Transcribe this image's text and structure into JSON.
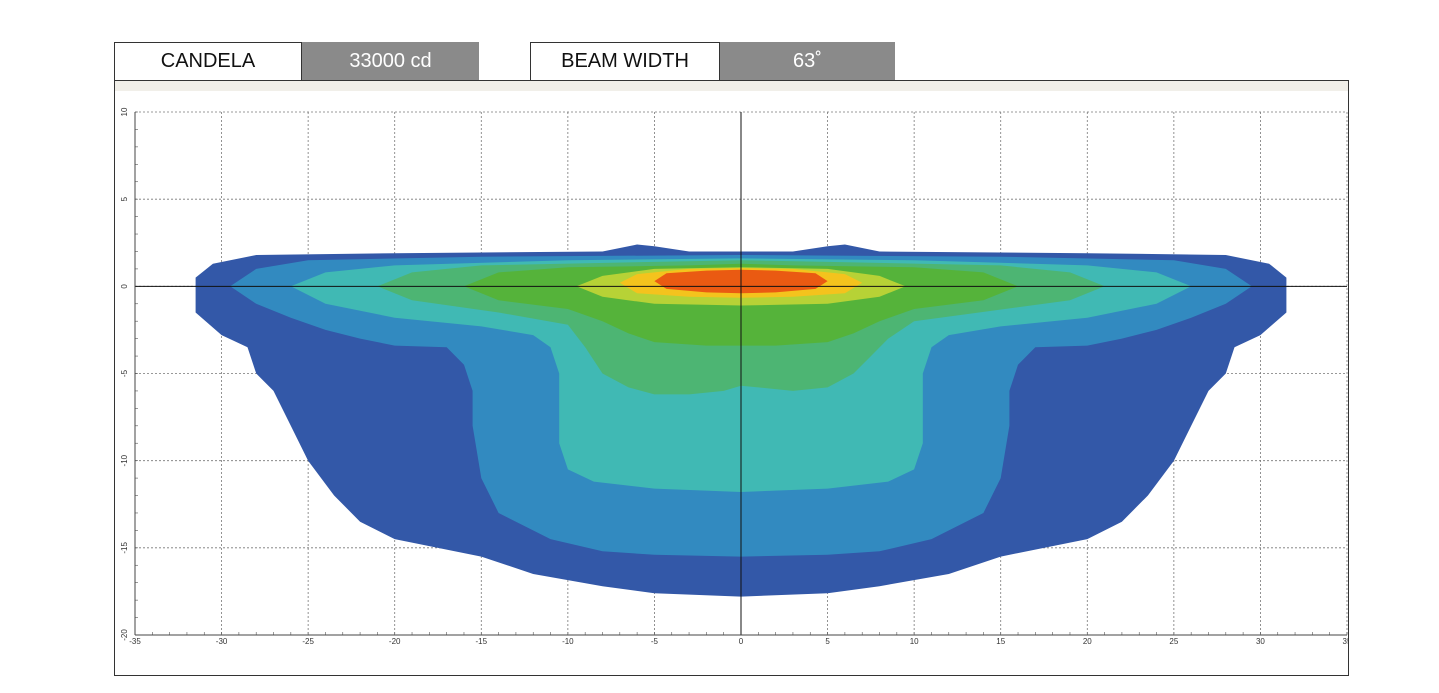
{
  "header": {
    "candela_label": "CANDELA",
    "candela_value": "33000 cd",
    "beam_label": "BEAM WIDTH",
    "beam_value": "63˚"
  },
  "chart_data": {
    "type": "heatmap",
    "title": "",
    "xlabel": "",
    "ylabel": "",
    "xlim": [
      -35,
      35
    ],
    "ylim": [
      -20,
      10
    ],
    "x_ticks": [
      -35,
      -30,
      -25,
      -20,
      -15,
      -10,
      -5,
      0,
      5,
      10,
      15,
      20,
      25,
      30,
      35
    ],
    "y_ticks": [
      10,
      5,
      0,
      -5,
      -10,
      -15,
      -20
    ],
    "grid": true,
    "legend": "none",
    "colors": {
      "level1": "#3358a8",
      "level2": "#328ac0",
      "level3": "#40b9b4",
      "level4": "#4db573",
      "level5": "#55b33a",
      "level6": "#b7d236",
      "level7": "#f4c31d",
      "level8": "#ea5a12"
    },
    "contours": [
      {
        "level": 1,
        "points": [
          [
            -31.5,
            0.5
          ],
          [
            -30.5,
            1.3
          ],
          [
            -28,
            1.8
          ],
          [
            -20,
            1.9
          ],
          [
            -8,
            2
          ],
          [
            -6,
            2.4
          ],
          [
            -5,
            2.3
          ],
          [
            -3,
            2
          ],
          [
            3,
            2
          ],
          [
            5,
            2.3
          ],
          [
            6,
            2.4
          ],
          [
            8,
            2
          ],
          [
            20,
            1.9
          ],
          [
            28,
            1.8
          ],
          [
            30.5,
            1.3
          ],
          [
            31.5,
            0.5
          ],
          [
            31.5,
            -1.5
          ],
          [
            30,
            -2.8
          ],
          [
            28.5,
            -3.5
          ],
          [
            28,
            -5
          ],
          [
            27,
            -6
          ],
          [
            26,
            -8
          ],
          [
            25,
            -10
          ],
          [
            23.5,
            -12
          ],
          [
            22,
            -13.5
          ],
          [
            20,
            -14.5
          ],
          [
            15,
            -15.5
          ],
          [
            12,
            -16.5
          ],
          [
            8,
            -17.2
          ],
          [
            5,
            -17.6
          ],
          [
            0,
            -17.8
          ],
          [
            -5,
            -17.6
          ],
          [
            -8,
            -17.2
          ],
          [
            -12,
            -16.5
          ],
          [
            -15,
            -15.5
          ],
          [
            -20,
            -14.5
          ],
          [
            -22,
            -13.5
          ],
          [
            -23.5,
            -12
          ],
          [
            -25,
            -10
          ],
          [
            -26,
            -8
          ],
          [
            -27,
            -6
          ],
          [
            -28,
            -5
          ],
          [
            -28.5,
            -3.5
          ],
          [
            -30,
            -2.8
          ],
          [
            -31.5,
            -1.5
          ]
        ]
      },
      {
        "level": 2,
        "points": [
          [
            -29.5,
            0
          ],
          [
            -28,
            1
          ],
          [
            -25,
            1.5
          ],
          [
            -15,
            1.7
          ],
          [
            0,
            1.8
          ],
          [
            15,
            1.7
          ],
          [
            25,
            1.5
          ],
          [
            28,
            1
          ],
          [
            29.5,
            0
          ],
          [
            28,
            -1
          ],
          [
            26,
            -1.8
          ],
          [
            24,
            -2.5
          ],
          [
            22,
            -3
          ],
          [
            20,
            -3.4
          ],
          [
            17,
            -3.5
          ],
          [
            16,
            -4.5
          ],
          [
            15.5,
            -6
          ],
          [
            15.5,
            -8
          ],
          [
            15,
            -11
          ],
          [
            14,
            -13
          ],
          [
            11,
            -14.5
          ],
          [
            8,
            -15.2
          ],
          [
            5,
            -15.4
          ],
          [
            0,
            -15.5
          ],
          [
            -5,
            -15.4
          ],
          [
            -8,
            -15.2
          ],
          [
            -11,
            -14.5
          ],
          [
            -14,
            -13
          ],
          [
            -15,
            -11
          ],
          [
            -15.5,
            -8
          ],
          [
            -15.5,
            -6
          ],
          [
            -16,
            -4.5
          ],
          [
            -17,
            -3.5
          ],
          [
            -20,
            -3.4
          ],
          [
            -22,
            -3
          ],
          [
            -24,
            -2.5
          ],
          [
            -26,
            -1.8
          ],
          [
            -28,
            -1
          ]
        ]
      },
      {
        "level": 3,
        "points": [
          [
            -26,
            0
          ],
          [
            -24,
            0.8
          ],
          [
            -20,
            1.2
          ],
          [
            -10,
            1.5
          ],
          [
            0,
            1.6
          ],
          [
            10,
            1.5
          ],
          [
            20,
            1.2
          ],
          [
            24,
            0.8
          ],
          [
            26,
            0
          ],
          [
            24,
            -1
          ],
          [
            20,
            -1.8
          ],
          [
            15,
            -2.3
          ],
          [
            12,
            -2.8
          ],
          [
            11,
            -3.5
          ],
          [
            10.5,
            -5
          ],
          [
            10.5,
            -7
          ],
          [
            10.5,
            -9
          ],
          [
            10,
            -10.5
          ],
          [
            8.5,
            -11.2
          ],
          [
            5,
            -11.6
          ],
          [
            0,
            -11.8
          ],
          [
            -5,
            -11.6
          ],
          [
            -8.5,
            -11.2
          ],
          [
            -10,
            -10.5
          ],
          [
            -10.5,
            -9
          ],
          [
            -10.5,
            -7
          ],
          [
            -10.5,
            -5
          ],
          [
            -11,
            -3.5
          ],
          [
            -12,
            -2.8
          ],
          [
            -15,
            -2.3
          ],
          [
            -20,
            -1.8
          ],
          [
            -24,
            -1
          ]
        ]
      },
      {
        "level": 4,
        "points": [
          [
            -21,
            0
          ],
          [
            -19,
            0.8
          ],
          [
            -15,
            1.2
          ],
          [
            -5,
            1.4
          ],
          [
            0,
            1.5
          ],
          [
            5,
            1.4
          ],
          [
            15,
            1.2
          ],
          [
            19,
            0.8
          ],
          [
            21,
            0
          ],
          [
            19,
            -0.8
          ],
          [
            16,
            -1.2
          ],
          [
            10,
            -2
          ],
          [
            8.5,
            -3
          ],
          [
            7.5,
            -4
          ],
          [
            6.5,
            -5
          ],
          [
            5,
            -5.8
          ],
          [
            3,
            -6
          ],
          [
            1,
            -5.8
          ],
          [
            0,
            -5.7
          ],
          [
            -1,
            -6
          ],
          [
            -3,
            -6.2
          ],
          [
            -5,
            -6.2
          ],
          [
            -6.5,
            -5.8
          ],
          [
            -8,
            -5
          ],
          [
            -9,
            -3.5
          ],
          [
            -10,
            -2.2
          ],
          [
            -14,
            -1.5
          ],
          [
            -19,
            -0.8
          ]
        ]
      },
      {
        "level": 5,
        "points": [
          [
            -16,
            0
          ],
          [
            -14,
            0.8
          ],
          [
            -10,
            1.1
          ],
          [
            -3,
            1.2
          ],
          [
            0,
            1.3
          ],
          [
            3,
            1.2
          ],
          [
            10,
            1.1
          ],
          [
            14,
            0.8
          ],
          [
            16,
            0
          ],
          [
            14,
            -0.8
          ],
          [
            10,
            -1.3
          ],
          [
            8,
            -2
          ],
          [
            6.5,
            -2.7
          ],
          [
            5,
            -3.2
          ],
          [
            2,
            -3.4
          ],
          [
            0,
            -3.4
          ],
          [
            -2,
            -3.4
          ],
          [
            -5,
            -3.2
          ],
          [
            -6.5,
            -2.7
          ],
          [
            -8,
            -2
          ],
          [
            -10,
            -1.3
          ],
          [
            -14,
            -0.8
          ]
        ]
      },
      {
        "level": 6,
        "points": [
          [
            -9.5,
            0
          ],
          [
            -8,
            0.6
          ],
          [
            -5,
            1
          ],
          [
            0,
            1.1
          ],
          [
            5,
            1
          ],
          [
            8,
            0.6
          ],
          [
            9.5,
            0
          ],
          [
            8,
            -0.6
          ],
          [
            5,
            -1
          ],
          [
            0,
            -1.1
          ],
          [
            -5,
            -1
          ],
          [
            -8,
            -0.6
          ]
        ]
      },
      {
        "level": 7,
        "points": [
          [
            -7,
            0.2
          ],
          [
            -6,
            0.7
          ],
          [
            -3,
            1
          ],
          [
            0,
            1.05
          ],
          [
            3,
            1
          ],
          [
            6,
            0.7
          ],
          [
            7,
            0.2
          ],
          [
            6,
            -0.4
          ],
          [
            3,
            -0.6
          ],
          [
            0,
            -0.65
          ],
          [
            -3,
            -0.6
          ],
          [
            -6,
            -0.4
          ]
        ]
      },
      {
        "level": 8,
        "points": [
          [
            -5,
            0.3
          ],
          [
            -4.3,
            0.75
          ],
          [
            -2,
            0.9
          ],
          [
            0,
            0.95
          ],
          [
            2,
            0.9
          ],
          [
            4.3,
            0.75
          ],
          [
            5,
            0.3
          ],
          [
            4.3,
            -0.15
          ],
          [
            2,
            -0.35
          ],
          [
            0,
            -0.4
          ],
          [
            -2,
            -0.35
          ],
          [
            -4.3,
            -0.15
          ]
        ]
      }
    ]
  }
}
